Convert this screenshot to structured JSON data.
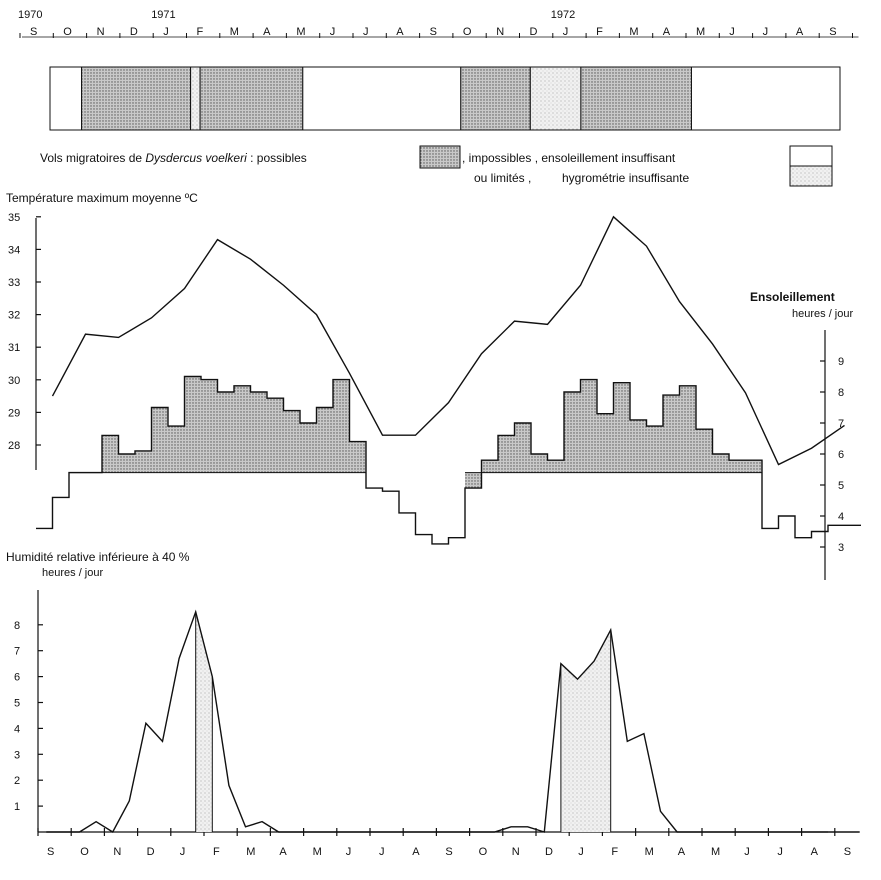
{
  "timeline": {
    "year_labels": [
      "1970",
      "1971",
      "1972"
    ],
    "month_letters": [
      "S",
      "O",
      "N",
      "D",
      "J",
      "F",
      "M",
      "A",
      "M",
      "J",
      "J",
      "A",
      "S",
      "O",
      "N",
      "D",
      "J",
      "F",
      "M",
      "A",
      "M",
      "J",
      "J",
      "A",
      "S"
    ]
  },
  "flight_bar": {
    "segments": [
      {
        "from": 0,
        "to": 1,
        "state": "insufficient-sunshine"
      },
      {
        "from": 1,
        "to": 4.45,
        "state": "possible"
      },
      {
        "from": 4.45,
        "to": 4.75,
        "state": "insufficient-humidity"
      },
      {
        "from": 4.75,
        "to": 8,
        "state": "possible"
      },
      {
        "from": 8,
        "to": 13,
        "state": "insufficient-sunshine"
      },
      {
        "from": 13,
        "to": 15.2,
        "state": "possible"
      },
      {
        "from": 15.2,
        "to": 16.8,
        "state": "insufficient-humidity"
      },
      {
        "from": 16.8,
        "to": 20.3,
        "state": "possible"
      },
      {
        "from": 20.3,
        "to": 25,
        "state": "insufficient-sunshine"
      }
    ]
  },
  "legend": {
    "line1_prefix": "Vols migratoires de ",
    "species": "Dysdercus voelkeri",
    "line1_mid": " : possibles",
    "line1_after": ", impossibles , ensoleillement insuffisant",
    "line2_a": "ou limités ,",
    "line2_b": "hygrométrie insuffisante"
  },
  "colors": {
    "ink": "#111111",
    "possible_fill": "#bdbdbd",
    "humidity_fill": "#e2e2e2"
  },
  "chart_data": [
    {
      "type": "line",
      "title": "Température maximum moyenne ºC",
      "x": [
        0,
        1,
        2,
        3,
        4,
        5,
        6,
        7,
        8,
        9,
        10,
        11,
        12,
        13,
        14,
        15,
        16,
        17,
        18,
        19,
        20,
        21,
        22,
        23,
        24
      ],
      "values": [
        29.5,
        31.4,
        31.3,
        31.9,
        32.8,
        34.3,
        33.7,
        32.9,
        32.0,
        30.2,
        28.3,
        28.3,
        29.3,
        30.8,
        31.8,
        31.7,
        32.9,
        35.0,
        34.1,
        32.4,
        31.1,
        29.6,
        27.4,
        27.9,
        28.6
      ],
      "ylim": [
        27,
        35
      ],
      "yticks": [
        28,
        29,
        30,
        31,
        32,
        33,
        34,
        35
      ]
    },
    {
      "type": "step",
      "title": "Ensoleillement",
      "ylabel": "heures / jour",
      "x": [
        0,
        0.5,
        1,
        1.5,
        2,
        2.5,
        3,
        3.5,
        4,
        4.5,
        5,
        5.5,
        6,
        6.5,
        7,
        7.5,
        8,
        8.5,
        9,
        9.5,
        10,
        10.5,
        11,
        11.5,
        12,
        12.5,
        13,
        13.5,
        14,
        14.5,
        15,
        15.5,
        16,
        16.5,
        17,
        17.5,
        18,
        18.5,
        19,
        19.5,
        20,
        20.5,
        21,
        21.5,
        22,
        22.5,
        23,
        23.5,
        24,
        24.5
      ],
      "values": [
        3.6,
        4.6,
        5.4,
        5.4,
        6.6,
        6.0,
        6.1,
        7.5,
        6.9,
        8.5,
        8.4,
        8.0,
        8.2,
        8.0,
        7.8,
        7.4,
        7.0,
        7.5,
        8.4,
        6.4,
        4.9,
        4.8,
        4.1,
        3.4,
        3.1,
        3.3,
        4.9,
        5.8,
        6.6,
        7.0,
        6.0,
        5.8,
        8.0,
        8.4,
        7.3,
        8.3,
        7.1,
        6.9,
        7.9,
        8.2,
        6.8,
        6.0,
        5.8,
        5.8,
        3.6,
        4.0,
        3.3,
        3.5,
        3.7,
        3.7
      ],
      "ylim": [
        2,
        10
      ],
      "yticks": [
        3,
        4,
        5,
        6,
        7,
        8,
        9
      ]
    },
    {
      "type": "area",
      "title": "Humidité relative inférieure à 40 %",
      "ylabel": "heures / jour",
      "x": [
        0,
        0.5,
        1,
        1.5,
        2,
        2.5,
        3,
        3.5,
        4,
        4.5,
        5,
        5.5,
        6,
        6.5,
        7,
        7.5,
        8,
        8.5,
        9,
        9.5,
        10,
        10.5,
        11,
        11.5,
        12,
        12.5,
        13,
        13.5,
        14,
        14.5,
        15,
        15.5,
        16,
        16.5,
        17,
        17.5,
        18,
        18.5,
        19,
        19.5,
        20,
        20.5,
        21,
        21.5,
        22,
        22.5,
        23,
        23.5,
        24,
        24.5
      ],
      "values": [
        0,
        0,
        0,
        0.4,
        0,
        1.2,
        4.2,
        3.5,
        6.7,
        8.5,
        6.0,
        1.8,
        0.2,
        0.4,
        0,
        0,
        0,
        0,
        0,
        0,
        0,
        0,
        0,
        0,
        0,
        0,
        0,
        0,
        0.2,
        0.2,
        0,
        6.5,
        5.9,
        6.6,
        7.8,
        3.5,
        3.8,
        0.8,
        0,
        0,
        0,
        0,
        0,
        0,
        0,
        0,
        0,
        0,
        0,
        0
      ],
      "ylim": [
        0,
        9
      ],
      "yticks": [
        1,
        2,
        3,
        4,
        5,
        6,
        7,
        8
      ]
    }
  ]
}
